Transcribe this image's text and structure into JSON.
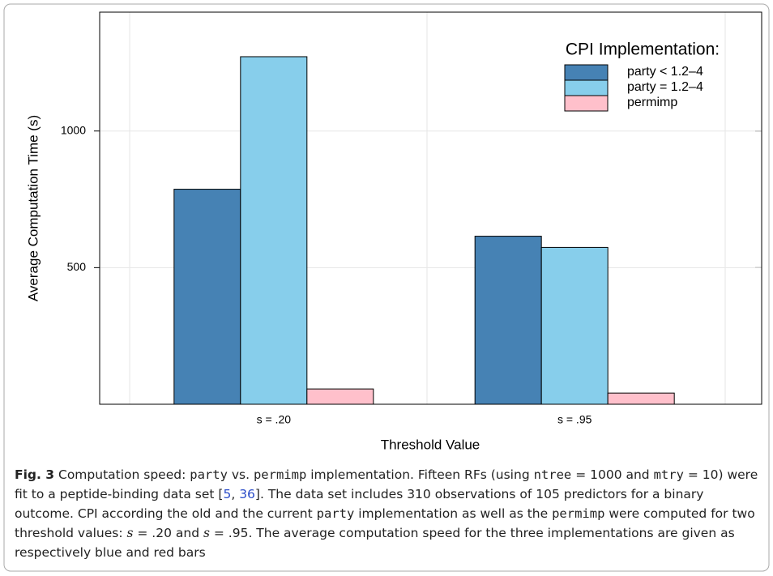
{
  "chart_data": {
    "type": "bar",
    "y_label": "Average Computation Time (s)",
    "x_label": "Threshold Value",
    "categories": [
      "s = .20",
      "s = .95"
    ],
    "series": [
      {
        "name": "party < 1.2–4",
        "color": "#4682b4",
        "values": [
          787,
          615
        ]
      },
      {
        "name": "party = 1.2–4",
        "color": "#87ceeb",
        "values": [
          1272,
          574
        ]
      },
      {
        "name": "permimp",
        "color": "#ffc0cb",
        "values": [
          56,
          41
        ]
      }
    ],
    "legend_title": "CPI Implementation:",
    "legend": "top-right",
    "ylim": [
      0,
      1435
    ],
    "yticks": [
      500,
      1000
    ],
    "caption": [
      "Fig. 3",
      " Computation speed: ",
      "party",
      " vs. ",
      "permimp",
      " implementation. Fifteen RFs (using ",
      "ntree",
      " = 1000 and ",
      "mtry",
      " = 10) were fit to a peptide-binding data set [",
      "5",
      ", ",
      "36",
      "]. The data set includes 310 observations of 105 predictors for a binary outcome. CPI according the old and the current ",
      "party",
      " implementation as well as the ",
      "permimp",
      " were computed for two threshold values: ",
      "s",
      " = .20 and ",
      "s",
      " = .95. The average computation speed for the three implementations are given as respectively blue and red bars"
    ]
  }
}
